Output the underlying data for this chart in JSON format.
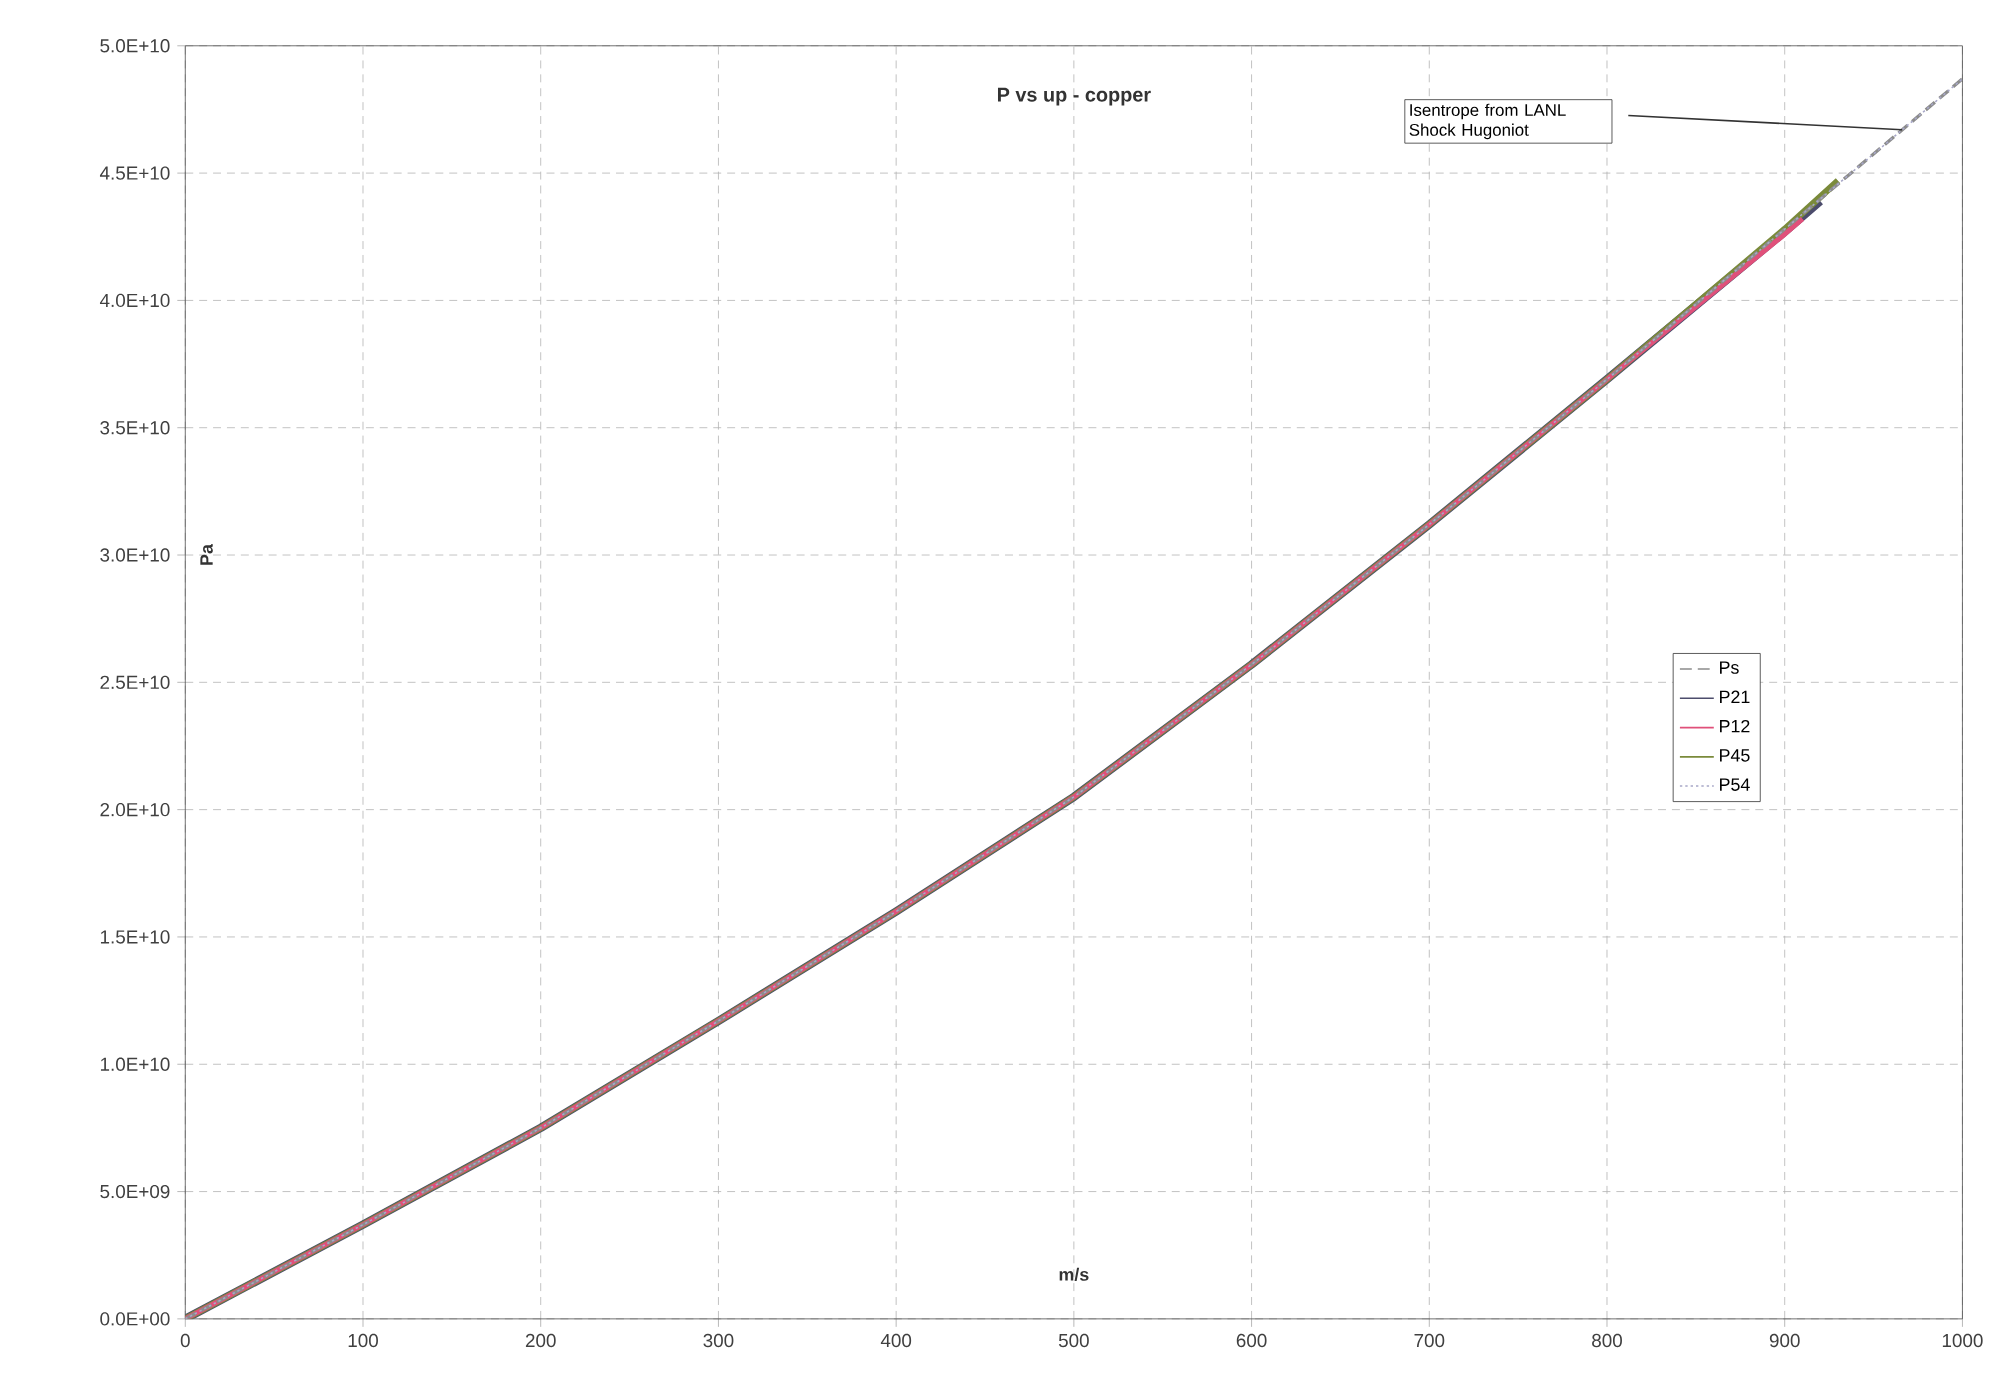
{
  "chart_data": {
    "type": "line",
    "title": "P vs up - copper",
    "xlabel": "m/s",
    "ylabel": "Pa",
    "annotations": [
      "Isentrope from LANL Shock Hugoniot"
    ],
    "series": [
      {
        "name": "Ps",
        "color": "#8c8c8c",
        "line_style": "dashed",
        "x": [
          0,
          100,
          200,
          300,
          400,
          500,
          600,
          700,
          800,
          900,
          1000
        ],
        "values": [
          0,
          3700000000,
          7500000000,
          11700000000,
          16000000000,
          20500000000,
          25700000000,
          31200000000,
          36900000000,
          42800000000,
          48700000000
        ]
      },
      {
        "name": "P21",
        "color": "#4c4c6c",
        "line_style": "solid",
        "x": [
          0,
          100,
          200,
          300,
          400,
          500,
          600,
          700,
          800,
          900,
          920
        ],
        "values": [
          0,
          3700000000,
          7500000000,
          11700000000,
          16000000000,
          20500000000,
          25700000000,
          31200000000,
          36900000000,
          42700000000,
          43900000000
        ]
      },
      {
        "name": "P12",
        "color": "#e0507a",
        "line_style": "solid",
        "x": [
          0,
          100,
          200,
          300,
          400,
          500,
          600,
          700,
          800,
          900,
          910
        ],
        "values": [
          0,
          3700000000,
          7500000000,
          11700000000,
          16000000000,
          20500000000,
          25700000000,
          31200000000,
          36900000000,
          42600000000,
          43200000000
        ]
      },
      {
        "name": "P45",
        "color": "#7a8a3a",
        "line_style": "solid",
        "x": [
          0,
          100,
          200,
          300,
          400,
          500,
          600,
          700,
          800,
          900,
          930
        ],
        "values": [
          0,
          3700000000,
          7500000000,
          11700000000,
          16000000000,
          20500000000,
          25700000000,
          31200000000,
          36900000000,
          42800000000,
          44700000000
        ]
      },
      {
        "name": "P54",
        "color": "#a8a8c8",
        "line_style": "dotted",
        "x": [
          0,
          100,
          200,
          300,
          400,
          500,
          600,
          700,
          800,
          900,
          1000
        ],
        "values": [
          0,
          3700000000,
          7500000000,
          11700000000,
          16000000000,
          20500000000,
          25700000000,
          31200000000,
          36900000000,
          42800000000,
          48700000000
        ]
      }
    ],
    "xlim": [
      0,
      1000
    ],
    "xticks": [
      0,
      100,
      200,
      300,
      400,
      500,
      600,
      700,
      800,
      900,
      1000
    ],
    "ylim": [
      0,
      50000000000
    ],
    "yticks": [
      {
        "value": 0,
        "label": "0.0E+00"
      },
      {
        "value": 5000000000,
        "label": "5.0E+09"
      },
      {
        "value": 10000000000,
        "label": "1.0E+10"
      },
      {
        "value": 15000000000,
        "label": "1.5E+10"
      },
      {
        "value": 20000000000,
        "label": "2.0E+10"
      },
      {
        "value": 25000000000,
        "label": "2.5E+10"
      },
      {
        "value": 30000000000,
        "label": "3.0E+10"
      },
      {
        "value": 35000000000,
        "label": "3.5E+10"
      },
      {
        "value": 40000000000,
        "label": "4.0E+10"
      },
      {
        "value": 45000000000,
        "label": "4.5E+10"
      },
      {
        "value": 50000000000,
        "label": "5.0E+10"
      }
    ],
    "grid": true,
    "legend": "right",
    "marker": "none"
  }
}
